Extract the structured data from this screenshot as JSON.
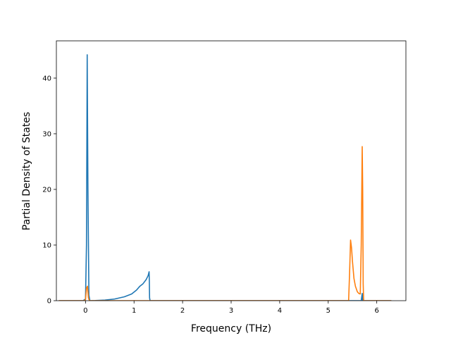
{
  "chart_data": {
    "type": "line",
    "title": "",
    "xlabel": "Frequency (THz)",
    "ylabel": "Partial Density of States",
    "xlim": [
      -0.6,
      6.6
    ],
    "ylim": [
      0,
      46.7
    ],
    "xticks": [
      0,
      1,
      2,
      3,
      4,
      5,
      6
    ],
    "yticks": [
      0,
      10,
      20,
      30,
      40
    ],
    "grid": false,
    "legend": "none",
    "series": [
      {
        "color": "#1f77b4",
        "points": [
          [
            -0.55,
            0
          ],
          [
            -0.05,
            0
          ],
          [
            0.0,
            0.3
          ],
          [
            0.02,
            10
          ],
          [
            0.035,
            44.2
          ],
          [
            0.05,
            20
          ],
          [
            0.07,
            1.0
          ],
          [
            0.09,
            0
          ],
          [
            0.2,
            0.02
          ],
          [
            0.4,
            0.1
          ],
          [
            0.6,
            0.3
          ],
          [
            0.8,
            0.7
          ],
          [
            0.95,
            1.2
          ],
          [
            1.05,
            1.9
          ],
          [
            1.12,
            2.6
          ],
          [
            1.18,
            3.0
          ],
          [
            1.25,
            3.8
          ],
          [
            1.29,
            4.5
          ],
          [
            1.31,
            5.2
          ],
          [
            1.315,
            3.5
          ],
          [
            1.32,
            0.5
          ],
          [
            1.33,
            0
          ],
          [
            5.62,
            0
          ],
          [
            5.68,
            0
          ],
          [
            5.7,
            1.3
          ],
          [
            5.71,
            0
          ],
          [
            6.3,
            0
          ]
        ]
      },
      {
        "color": "#ff7f0e",
        "points": [
          [
            -0.55,
            0
          ],
          [
            -0.02,
            0
          ],
          [
            0.0,
            0.2
          ],
          [
            0.02,
            2.2
          ],
          [
            0.04,
            2.6
          ],
          [
            0.06,
            0.5
          ],
          [
            0.08,
            0
          ],
          [
            5.42,
            0
          ],
          [
            5.44,
            5.0
          ],
          [
            5.46,
            10.9
          ],
          [
            5.48,
            9.5
          ],
          [
            5.5,
            7.0
          ],
          [
            5.53,
            4.0
          ],
          [
            5.56,
            2.6
          ],
          [
            5.6,
            1.6
          ],
          [
            5.63,
            1.3
          ],
          [
            5.66,
            1.2
          ],
          [
            5.68,
            10
          ],
          [
            5.7,
            27.7
          ],
          [
            5.71,
            20
          ],
          [
            5.72,
            3
          ],
          [
            5.73,
            0
          ],
          [
            6.3,
            0
          ]
        ]
      }
    ]
  }
}
